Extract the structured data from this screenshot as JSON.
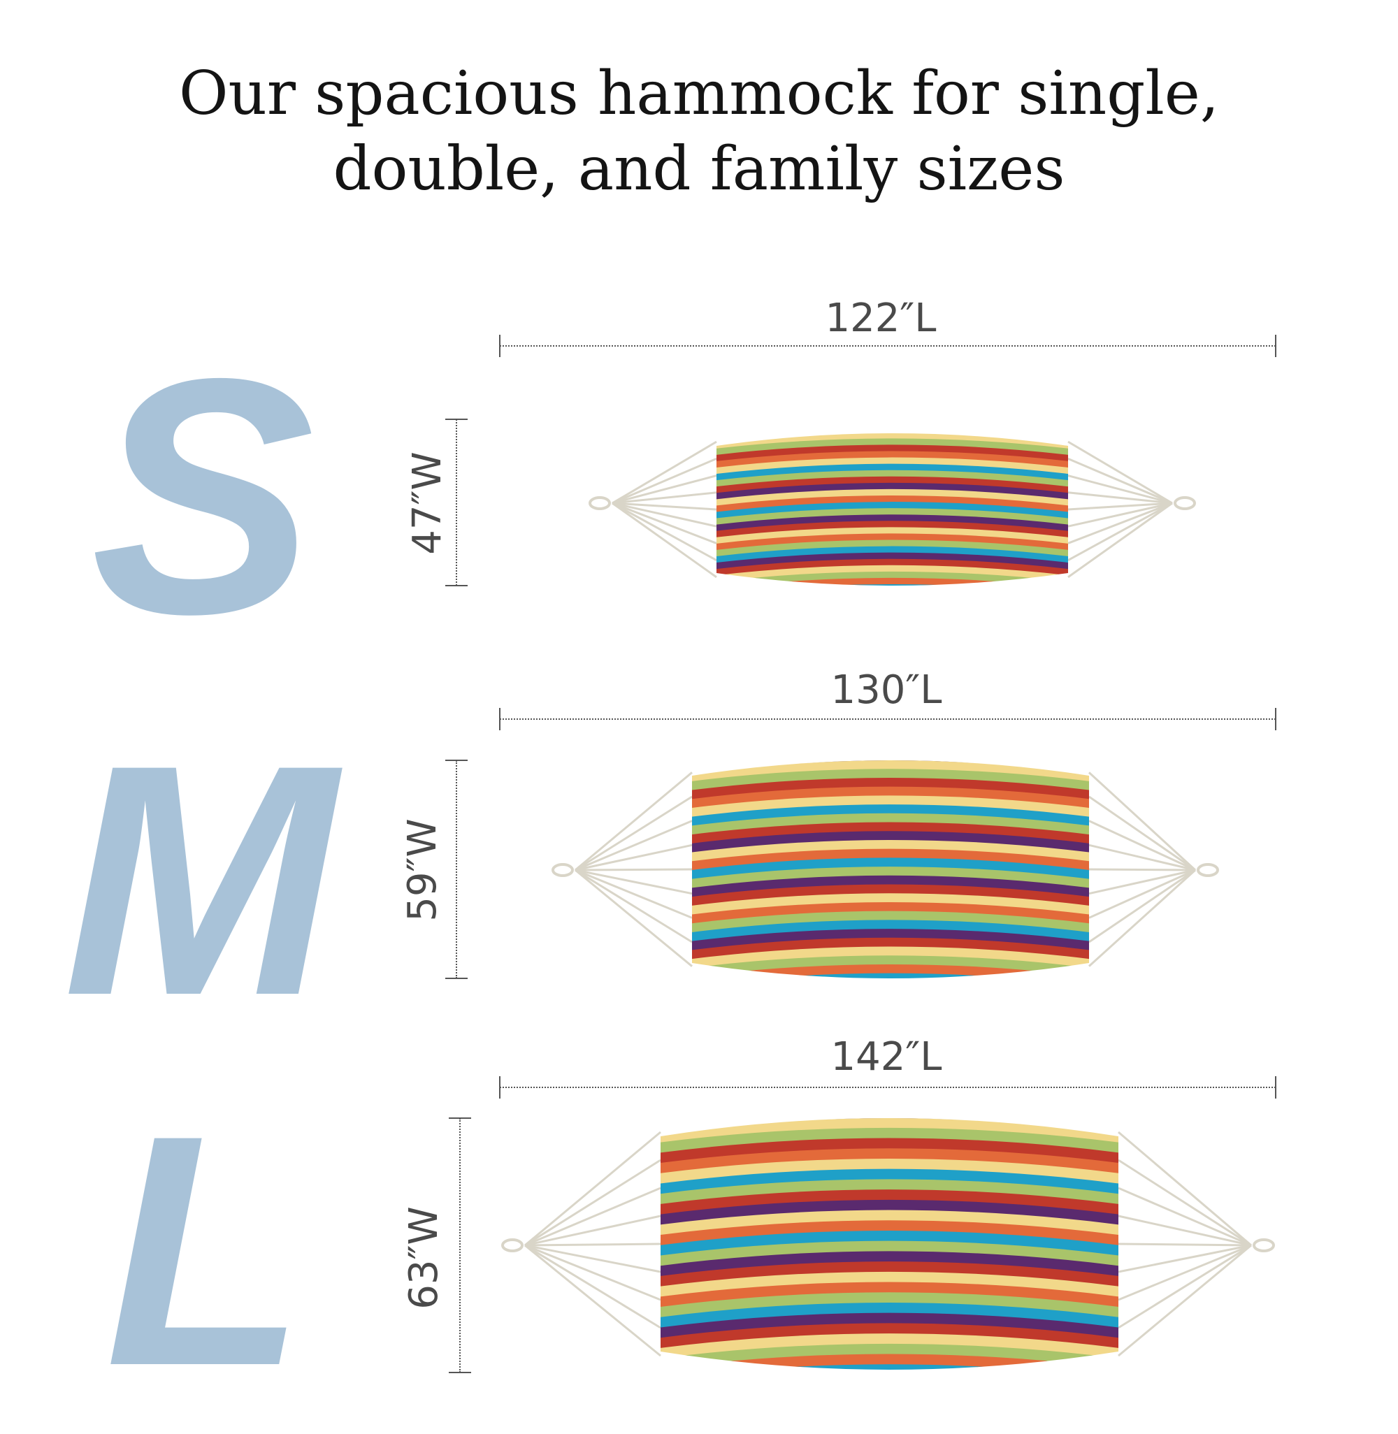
{
  "title": {
    "line1": "Our spacious hammock for single,",
    "line2": "double, and family sizes"
  },
  "sizes": [
    {
      "letter": "S",
      "length_label": "122″L",
      "width_label": "47″W"
    },
    {
      "letter": "M",
      "length_label": "130″L",
      "width_label": "59″W"
    },
    {
      "letter": "L",
      "length_label": "142″L",
      "width_label": "63″W"
    }
  ],
  "colors": {
    "letter": "#a8c2d8",
    "rope": "#d9d5c8",
    "stripes": [
      "#5a2a6e",
      "#f2d88a",
      "#a9c46a",
      "#c0392b",
      "#e36a3a",
      "#1fa0c8"
    ]
  }
}
